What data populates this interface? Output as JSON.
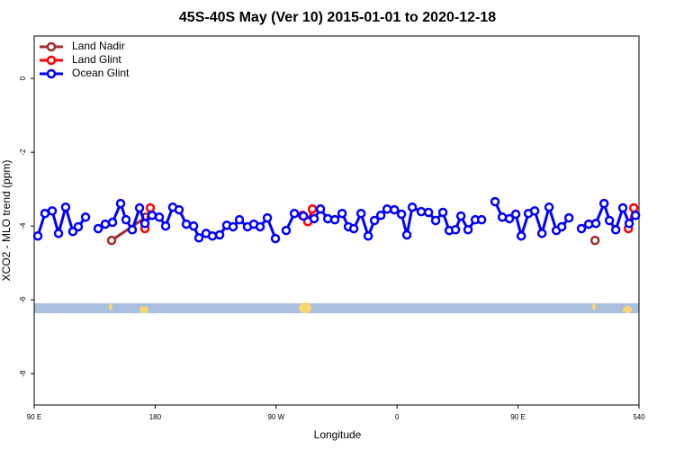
{
  "chart_data": {
    "type": "line",
    "title": "45S-40S May (Ver 10)   2015-01-01 to 2020-12-18",
    "x_label": "Longitude",
    "y_label": "XCO2 - MLO trend (ppm)",
    "xlim": [
      90,
      540
    ],
    "xticks": [
      {
        "value": 90,
        "label": "90 E"
      },
      180,
      {
        "value": 270,
        "label": "90 W"
      },
      {
        "value": 360,
        "label": "0"
      },
      {
        "value": 450,
        "label": "90 E"
      },
      540
    ],
    "ylim": [
      -8.85,
      1.15
    ],
    "yticks": [
      0,
      -2,
      -4,
      -6,
      -8
    ],
    "legend": "top-left",
    "series": [
      {
        "name": "Land Nadir",
        "color": "#a52a2a",
        "x": [
          147.6,
          173.1,
          340,
          507.3
        ],
        "values": [
          -4.39,
          -3.76,
          null,
          -4.39
        ]
      },
      {
        "name": "Land Glint",
        "color": "#ff0000",
        "x": [
          172.4,
          176.4,
          230,
          289.6,
          293.6,
          297.0,
          410,
          532.1,
          536.1
        ],
        "values": [
          -4.07,
          -3.51,
          null,
          -3.71,
          -3.88,
          -3.54,
          null,
          -4.07,
          -3.51
        ]
      },
      {
        "name": "Ocean Glint",
        "color": "#0000ff",
        "x": [
          92.7,
          98.0,
          103.4,
          108.1,
          113.4,
          118.8,
          122.8,
          128.2,
          133,
          137.6,
          142.9,
          148.3,
          154.3,
          158.3,
          163.0,
          168.4,
          172.4,
          177.7,
          183.1,
          187.8,
          193.1,
          197.8,
          203.2,
          208.6,
          212.6,
          217.9,
          222.6,
          228.0,
          233.3,
          238.0,
          242.7,
          248.7,
          253.4,
          258.1,
          263.5,
          269.5,
          273.5,
          277.5,
          283.6,
          290.3,
          298.3,
          303.0,
          308.4,
          313.7,
          319.1,
          323.8,
          327.8,
          333.2,
          338.5,
          343.2,
          347.9,
          352.6,
          358.0,
          363.3,
          367.3,
          371.3,
          378.0,
          383.4,
          388.7,
          394.1,
          398.8,
          403.5,
          407.5,
          412.8,
          418.2,
          422.9,
          427.9,
          432.9,
          438.3,
          443.6,
          448.3,
          452.4,
          457.7,
          462.4,
          467.8,
          473.1,
          478.5,
          482.5,
          487.9,
          492.5,
          497.2,
          502.6,
          507.9,
          514.0,
          518.0,
          522.7,
          528.0,
          532.7,
          537.4
        ],
        "values": [
          -4.27,
          -3.66,
          -3.59,
          -4.2,
          -3.49,
          -4.15,
          -4.02,
          -3.76,
          null,
          -4.07,
          -3.95,
          -3.9,
          -3.39,
          -3.83,
          -4.1,
          -3.51,
          -3.93,
          -3.71,
          -3.76,
          -4.0,
          -3.49,
          -3.56,
          -3.95,
          -4.0,
          -4.32,
          -4.2,
          -4.27,
          -4.24,
          -3.98,
          -4.02,
          -3.83,
          -4.02,
          -3.95,
          -4.02,
          -3.78,
          -4.34,
          null,
          -4.12,
          -3.66,
          -3.73,
          -3.8,
          -3.54,
          -3.8,
          -3.83,
          -3.66,
          -4.02,
          -4.07,
          -3.66,
          -4.27,
          -3.85,
          -3.71,
          -3.54,
          -3.56,
          -3.68,
          -4.24,
          -3.49,
          -3.61,
          -3.63,
          -3.85,
          -3.63,
          -4.12,
          -4.1,
          -3.73,
          -4.1,
          -3.83,
          -3.83,
          null,
          -3.34,
          -3.76,
          -3.8,
          -3.68,
          -4.27,
          -3.66,
          -3.59,
          -4.2,
          -3.49,
          -4.12,
          -4.02,
          -3.78,
          null,
          -4.07,
          -3.95,
          -3.93,
          -3.39,
          -3.85,
          -4.1,
          -3.51,
          -3.93,
          -3.71
        ]
      }
    ]
  }
}
